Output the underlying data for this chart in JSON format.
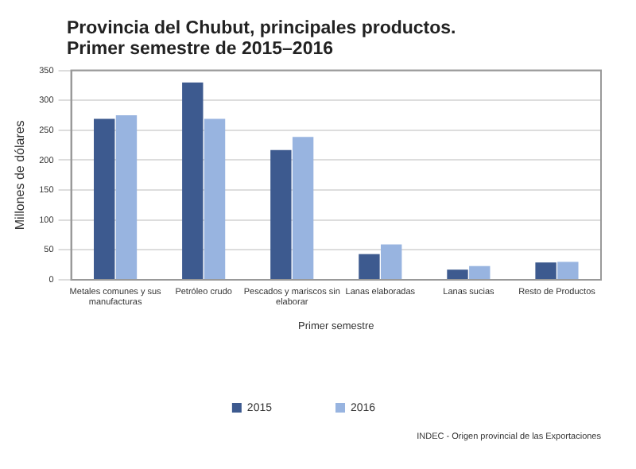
{
  "chart_data": {
    "type": "bar",
    "title": "Provincia del Chubut, principales productos.",
    "subtitle": "Primer semestre de 2015–2016",
    "xlabel": "Primer semestre",
    "ylabel": "Millones de dólares",
    "categories": [
      "Metales comunes y sus manufacturas",
      "Petróleo crudo",
      "Pescados y mariscos sin elaborar",
      "Lanas elaboradas",
      "Lanas sucias",
      "Resto de Productos"
    ],
    "series": [
      {
        "name": "2015",
        "color": "#3d5a8f",
        "values": [
          269,
          330,
          217,
          43,
          17,
          29
        ]
      },
      {
        "name": "2016",
        "color": "#98b4e0",
        "values": [
          275,
          269,
          239,
          59,
          23,
          30
        ]
      }
    ],
    "ylim": [
      0,
      350
    ],
    "yticks": [
      0,
      50,
      100,
      150,
      200,
      250,
      300,
      350
    ],
    "grid": "y",
    "legend": "bottom",
    "annotations": [
      "INDEC - Origen provincial de las Exportaciones"
    ]
  }
}
